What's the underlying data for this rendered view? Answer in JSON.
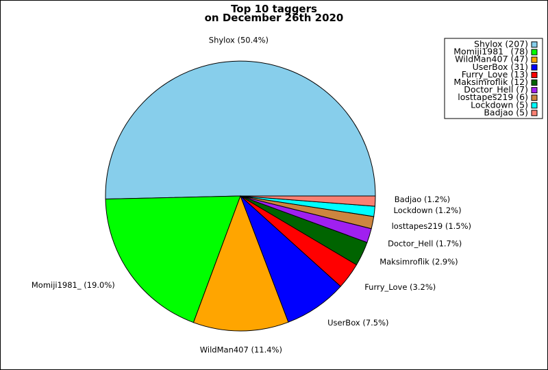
{
  "chart_data": {
    "type": "pie",
    "title_lines": [
      "Top 10 taggers",
      "on December 26th 2020"
    ],
    "slices": [
      {
        "name": "Shylox",
        "count": 207,
        "percent": 50.4,
        "label": "Shylox (50.4%)",
        "legend": "Shylox (207)",
        "color": "#87ceeb"
      },
      {
        "name": "Momiji1981_",
        "count": 78,
        "percent": 19.0,
        "label": "Momiji1981_ (19.0%)",
        "legend": "Momiji1981_ (78)",
        "color": "#00ff00"
      },
      {
        "name": "WildMan407",
        "count": 47,
        "percent": 11.4,
        "label": "WildMan407 (11.4%)",
        "legend": "WildMan407 (47)",
        "color": "#ffa500"
      },
      {
        "name": "UserBox",
        "count": 31,
        "percent": 7.5,
        "label": "UserBox (7.5%)",
        "legend": "UserBox (31)",
        "color": "#0000ff"
      },
      {
        "name": "Furry_Love",
        "count": 13,
        "percent": 3.2,
        "label": "Furry_Love (3.2%)",
        "legend": "Furry_Love (13)",
        "color": "#ff0000"
      },
      {
        "name": "Maksimroflik",
        "count": 12,
        "percent": 2.9,
        "label": "Maksimroflik (2.9%)",
        "legend": "Maksimroflik (12)",
        "color": "#006400"
      },
      {
        "name": "Doctor_Hell",
        "count": 7,
        "percent": 1.7,
        "label": "Doctor_Hell (1.7%)",
        "legend": "Doctor_Hell (7)",
        "color": "#a020f0"
      },
      {
        "name": "losttapes219",
        "count": 6,
        "percent": 1.5,
        "label": "losttapes219 (1.5%)",
        "legend": "losttapes219 (6)",
        "color": "#cd853f"
      },
      {
        "name": "Lockdown",
        "count": 5,
        "percent": 1.2,
        "label": "Lockdown (1.2%)",
        "legend": "Lockdown (5)",
        "color": "#00ffff"
      },
      {
        "name": "Badjao",
        "count": 5,
        "percent": 1.2,
        "label": "Badjao (1.2%)",
        "legend": "Badjao (5)",
        "color": "#fa8072"
      }
    ],
    "start_angle_deg": 0,
    "direction": "clockwise",
    "legend_position": "top-right"
  }
}
